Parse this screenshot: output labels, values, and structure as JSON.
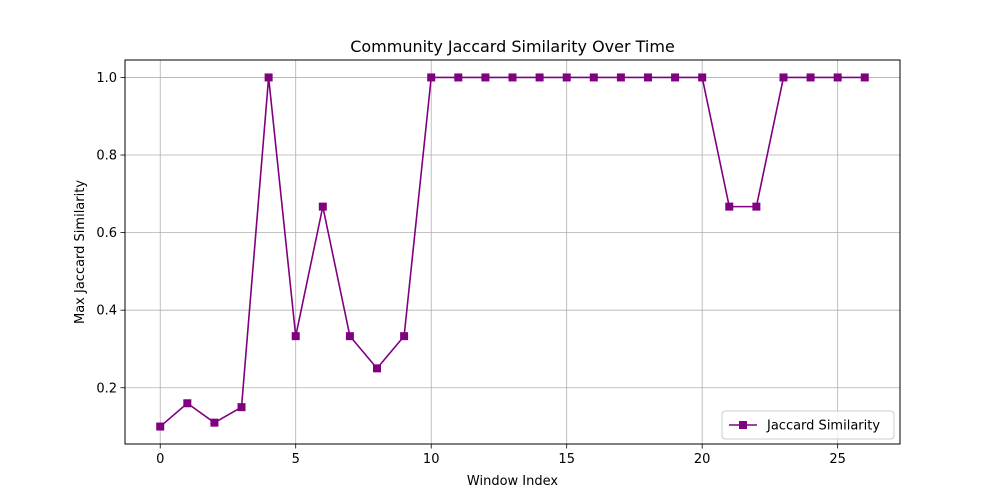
{
  "chart_data": {
    "type": "line",
    "title": "Community Jaccard Similarity Over Time",
    "xlabel": "Window Index",
    "ylabel": "Max Jaccard Similarity",
    "xlim": [
      -1.3,
      27.3
    ],
    "ylim": [
      0.055,
      1.045
    ],
    "xticks": [
      0,
      5,
      10,
      15,
      20,
      25
    ],
    "yticks": [
      0.2,
      0.4,
      0.6,
      0.8,
      1.0
    ],
    "xtick_labels": [
      "0",
      "5",
      "10",
      "15",
      "20",
      "25"
    ],
    "ytick_labels": [
      "0.2",
      "0.4",
      "0.6",
      "0.8",
      "1.0"
    ],
    "grid": true,
    "legend_position": "lower-right",
    "marker": "square",
    "series": [
      {
        "name": "Jaccard Similarity",
        "color": "#800080",
        "x": [
          0,
          1,
          2,
          3,
          4,
          5,
          6,
          7,
          8,
          9,
          10,
          11,
          12,
          13,
          14,
          15,
          16,
          17,
          18,
          19,
          20,
          21,
          22,
          23,
          24,
          25,
          26
        ],
        "y": [
          0.1,
          0.16,
          0.11,
          0.15,
          1.0,
          0.333,
          0.667,
          0.333,
          0.25,
          0.333,
          1.0,
          1.0,
          1.0,
          1.0,
          1.0,
          1.0,
          1.0,
          1.0,
          1.0,
          1.0,
          1.0,
          0.667,
          0.667,
          1.0,
          1.0,
          1.0,
          1.0
        ]
      }
    ]
  }
}
